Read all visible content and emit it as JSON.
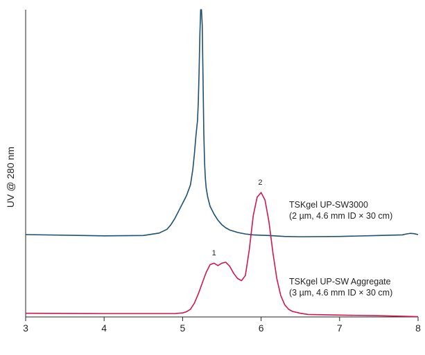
{
  "chart_data": {
    "type": "line",
    "title": "",
    "xlabel": "",
    "ylabel": "UV @ 280 nm",
    "xlim": [
      3,
      8
    ],
    "ylim": [
      0,
      1
    ],
    "x_ticks": [
      "3",
      "4",
      "5",
      "6",
      "7",
      "8"
    ],
    "grid": false,
    "series": [
      {
        "name_lines": [
          "TSKgel UP-SW3000",
          "(2 µm, 4.6 mm ID × 30 cm)"
        ],
        "color": "#1d4f6e",
        "x": [
          3.0,
          4.0,
          4.5,
          4.7,
          4.8,
          4.85,
          4.9,
          4.95,
          5.0,
          5.05,
          5.1,
          5.13,
          5.15,
          5.17,
          5.19,
          5.2,
          5.21,
          5.22,
          5.23,
          5.24,
          5.25,
          5.26,
          5.27,
          5.28,
          5.29,
          5.3,
          5.32,
          5.35,
          5.4,
          5.45,
          5.5,
          5.55,
          5.6,
          5.7,
          5.8,
          5.9,
          6.0,
          6.1,
          6.3,
          6.5,
          7.0,
          7.5,
          7.8,
          7.85,
          7.9,
          7.95,
          8.0
        ],
        "y": [
          0.268,
          0.264,
          0.265,
          0.273,
          0.285,
          0.3,
          0.32,
          0.345,
          0.37,
          0.395,
          0.43,
          0.48,
          0.53,
          0.59,
          0.64,
          0.7,
          0.8,
          0.92,
          1.0,
          1.0,
          0.95,
          0.78,
          0.6,
          0.5,
          0.45,
          0.42,
          0.39,
          0.36,
          0.335,
          0.315,
          0.3,
          0.29,
          0.283,
          0.275,
          0.27,
          0.267,
          0.266,
          0.265,
          0.262,
          0.261,
          0.262,
          0.265,
          0.267,
          0.27,
          0.272,
          0.271,
          0.268
        ]
      },
      {
        "name_lines": [
          "TSKgel UP-SW Aggregate",
          "(3 µm, 4.6 mm ID × 30 cm)"
        ],
        "color": "#d0174e",
        "x": [
          3.0,
          4.0,
          4.9,
          5.0,
          5.05,
          5.1,
          5.15,
          5.2,
          5.25,
          5.3,
          5.35,
          5.4,
          5.45,
          5.5,
          5.55,
          5.6,
          5.65,
          5.7,
          5.75,
          5.8,
          5.85,
          5.9,
          5.95,
          6.0,
          6.05,
          6.1,
          6.15,
          6.2,
          6.25,
          6.3,
          6.35,
          6.4,
          6.5,
          6.6,
          7.0,
          7.5,
          8.0
        ],
        "y": [
          0.012,
          0.011,
          0.011,
          0.013,
          0.017,
          0.025,
          0.045,
          0.075,
          0.11,
          0.145,
          0.17,
          0.175,
          0.167,
          0.175,
          0.178,
          0.165,
          0.142,
          0.125,
          0.118,
          0.135,
          0.22,
          0.33,
          0.39,
          0.405,
          0.38,
          0.31,
          0.21,
          0.125,
          0.07,
          0.04,
          0.025,
          0.018,
          0.012,
          0.008,
          0.006,
          0.004,
          0.001
        ]
      }
    ],
    "annotations": [
      {
        "text": "1",
        "x": 5.4,
        "y": 0.2
      },
      {
        "text": "2",
        "x": 5.99,
        "y": 0.43
      }
    ]
  }
}
